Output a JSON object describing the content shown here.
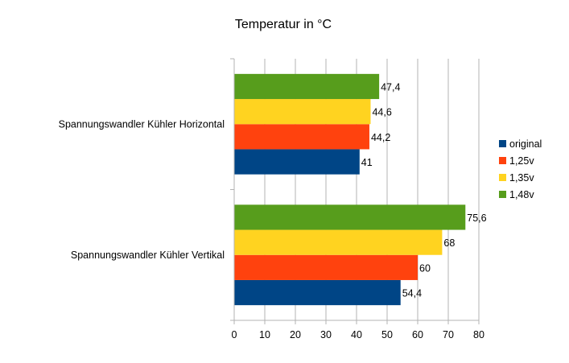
{
  "chart_data": {
    "type": "bar",
    "orientation": "horizontal",
    "title": "Temperatur in °C",
    "categories": [
      "Spannungswandler Kühler Horizontal",
      "Spannungswandler Kühler Vertikal"
    ],
    "series": [
      {
        "name": "original",
        "color": "#004586",
        "values": [
          41,
          54.4
        ],
        "labels": [
          "41",
          "54,4"
        ]
      },
      {
        "name": "1,25v",
        "color": "#ff420e",
        "values": [
          44.2,
          60
        ],
        "labels": [
          "44,2",
          "60"
        ]
      },
      {
        "name": "1,35v",
        "color": "#ffd320",
        "values": [
          44.6,
          68
        ],
        "labels": [
          "44,6",
          "68"
        ]
      },
      {
        "name": "1,48v",
        "color": "#579d1c",
        "values": [
          47.4,
          75.6
        ],
        "labels": [
          "47,4",
          "75,6"
        ]
      }
    ],
    "xlim": [
      0,
      80
    ],
    "xticks": [
      "0",
      "10",
      "20",
      "30",
      "40",
      "50",
      "60",
      "70",
      "80"
    ],
    "grid": true,
    "legend_position": "right"
  }
}
